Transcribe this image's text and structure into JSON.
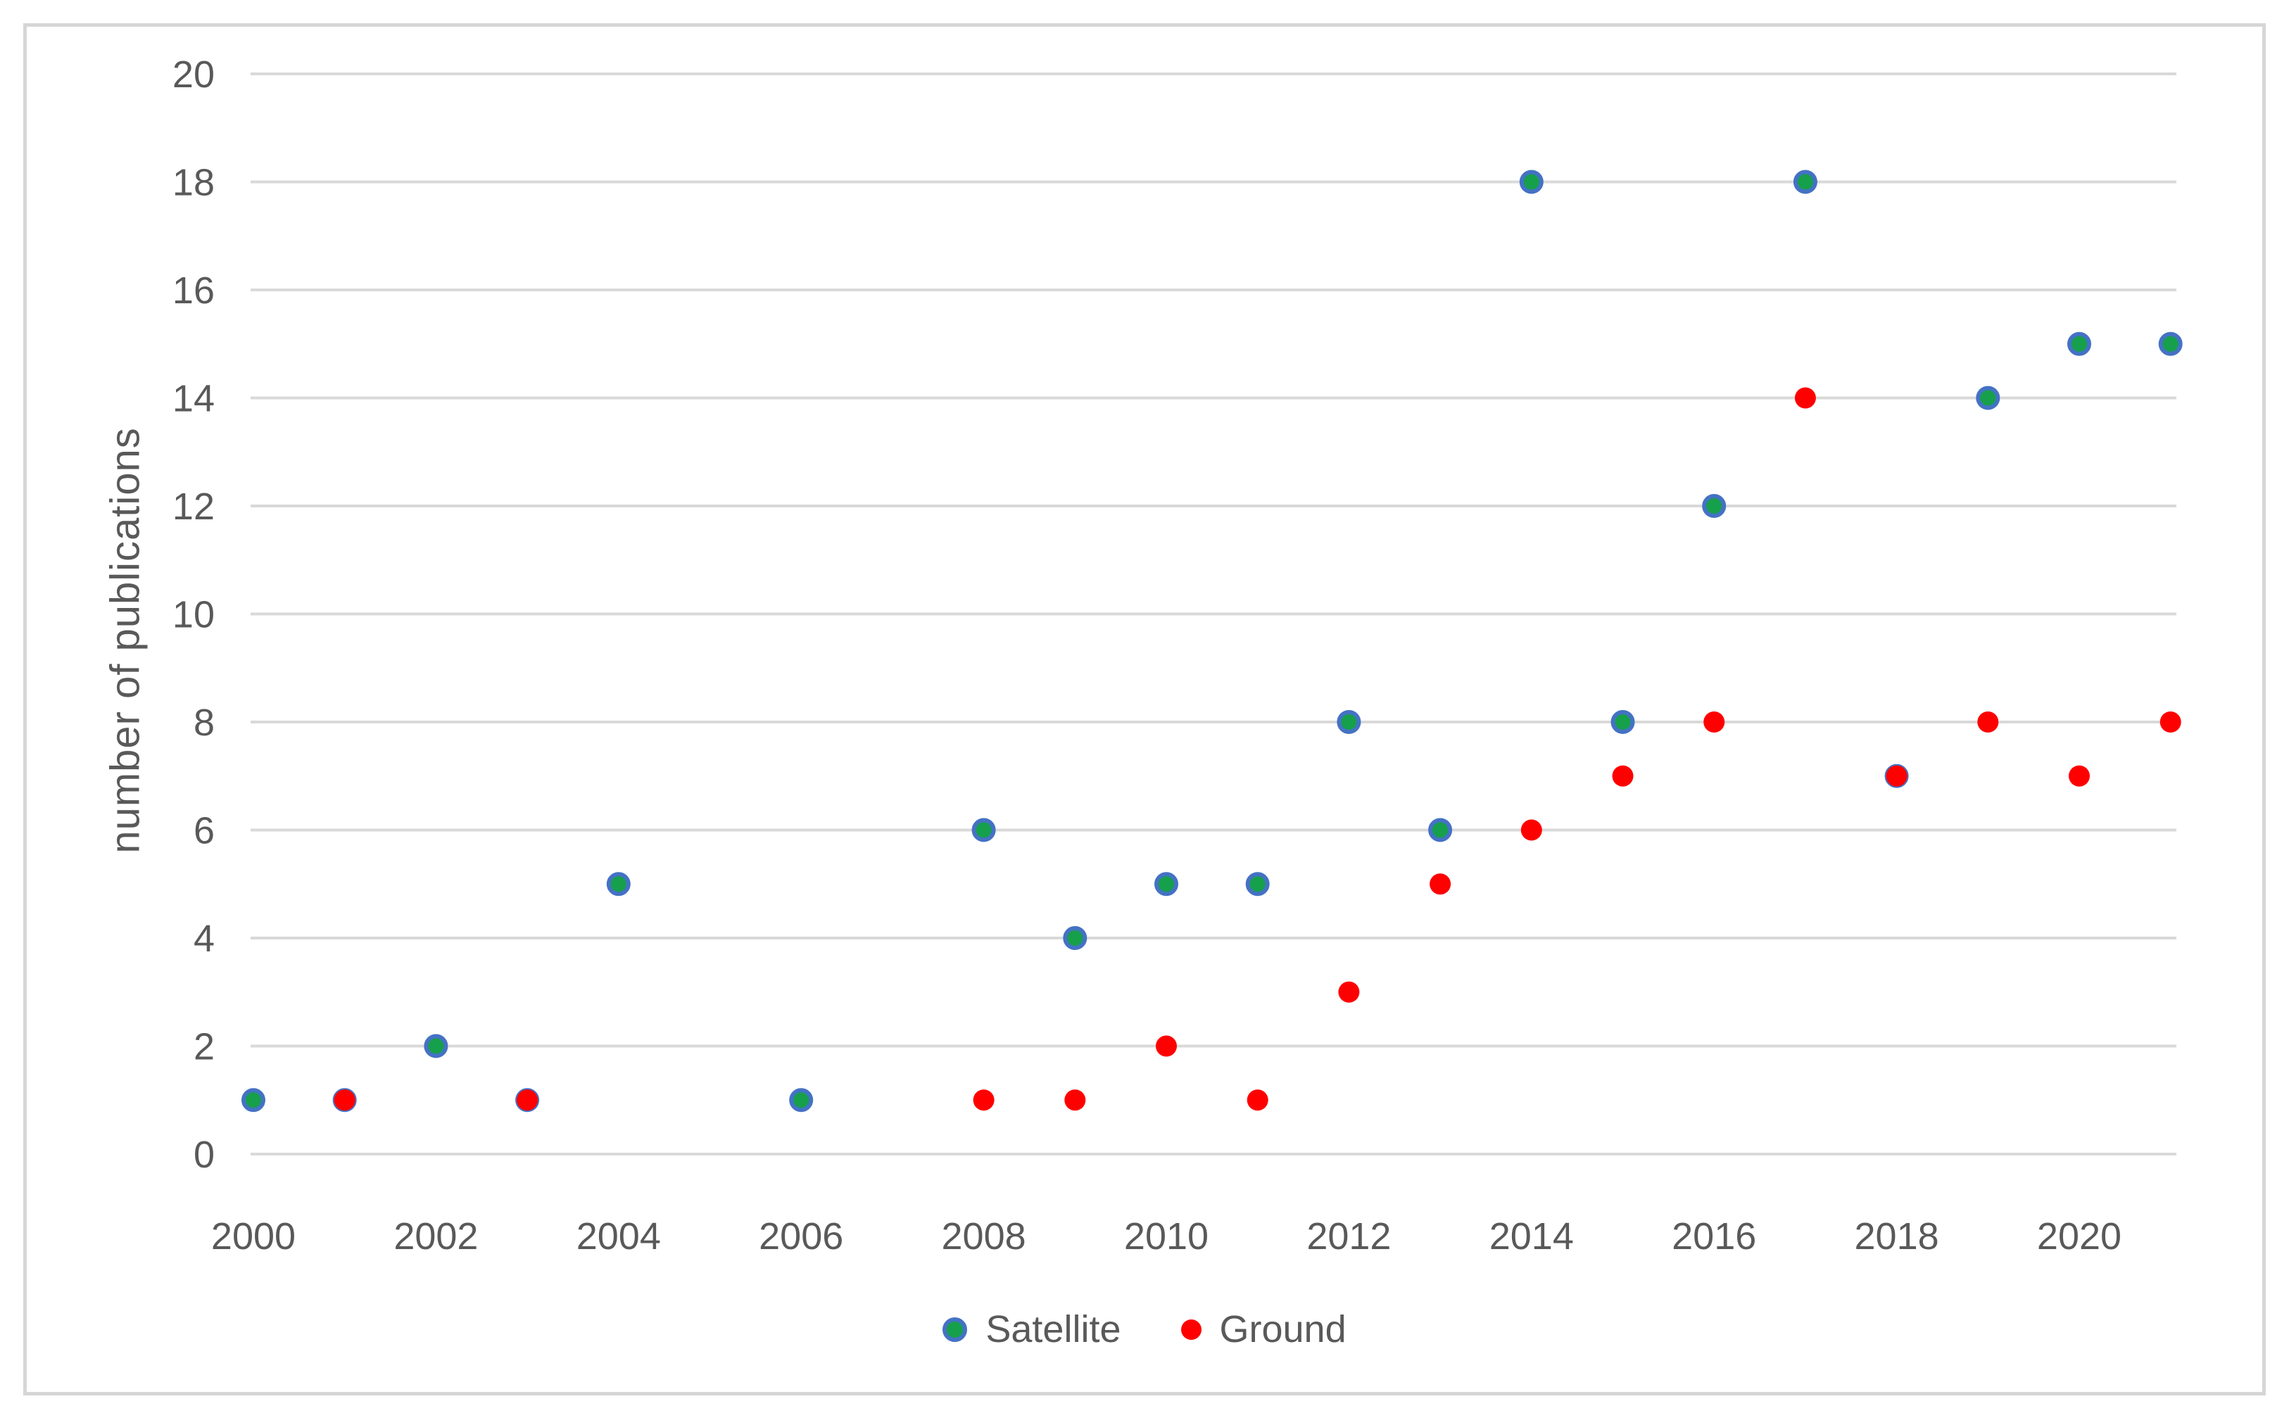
{
  "chart_data": {
    "type": "scatter",
    "title": "",
    "xlabel": "",
    "ylabel": "number of publications",
    "x_ticks": [
      2000,
      2002,
      2004,
      2006,
      2008,
      2010,
      2012,
      2014,
      2016,
      2018,
      2020
    ],
    "y_ticks": [
      0,
      2,
      4,
      6,
      8,
      10,
      12,
      14,
      16,
      18,
      20
    ],
    "xlim": [
      2000,
      2021
    ],
    "ylim": [
      0,
      20
    ],
    "grid": "horizontal-only",
    "legend_position": "bottom-center",
    "series": [
      {
        "name": "Satellite",
        "marker": {
          "shape": "circle",
          "fill": "#16a04c",
          "stroke": "#4472c4"
        },
        "points": [
          {
            "x": 2000,
            "y": 1
          },
          {
            "x": 2001,
            "y": 1
          },
          {
            "x": 2002,
            "y": 2
          },
          {
            "x": 2003,
            "y": 1
          },
          {
            "x": 2004,
            "y": 5
          },
          {
            "x": 2006,
            "y": 1
          },
          {
            "x": 2008,
            "y": 6
          },
          {
            "x": 2009,
            "y": 4
          },
          {
            "x": 2010,
            "y": 5
          },
          {
            "x": 2011,
            "y": 5
          },
          {
            "x": 2012,
            "y": 8
          },
          {
            "x": 2013,
            "y": 6
          },
          {
            "x": 2014,
            "y": 18
          },
          {
            "x": 2015,
            "y": 8
          },
          {
            "x": 2016,
            "y": 12
          },
          {
            "x": 2017,
            "y": 18
          },
          {
            "x": 2018,
            "y": 7
          },
          {
            "x": 2019,
            "y": 14
          },
          {
            "x": 2020,
            "y": 15
          },
          {
            "x": 2021,
            "y": 15
          }
        ]
      },
      {
        "name": "Ground",
        "marker": {
          "shape": "circle",
          "fill": "#ff0000",
          "stroke": "none"
        },
        "points": [
          {
            "x": 2001,
            "y": 1
          },
          {
            "x": 2003,
            "y": 1
          },
          {
            "x": 2008,
            "y": 1
          },
          {
            "x": 2009,
            "y": 1
          },
          {
            "x": 2010,
            "y": 2
          },
          {
            "x": 2011,
            "y": 1
          },
          {
            "x": 2012,
            "y": 3
          },
          {
            "x": 2013,
            "y": 5
          },
          {
            "x": 2014,
            "y": 6
          },
          {
            "x": 2015,
            "y": 7
          },
          {
            "x": 2016,
            "y": 8
          },
          {
            "x": 2017,
            "y": 14
          },
          {
            "x": 2018,
            "y": 7
          },
          {
            "x": 2019,
            "y": 8
          },
          {
            "x": 2020,
            "y": 7
          },
          {
            "x": 2021,
            "y": 8
          }
        ]
      }
    ]
  },
  "colors": {
    "satellite_fill": "#16a04c",
    "satellite_ring": "#4472c4",
    "ground_fill": "#ff0000",
    "gridline": "#d9d9d9",
    "axis_text": "#595959",
    "chart_border": "#d6d6d6",
    "background": "#ffffff"
  },
  "legend": {
    "items": [
      {
        "label": "Satellite"
      },
      {
        "label": "Ground"
      }
    ]
  }
}
